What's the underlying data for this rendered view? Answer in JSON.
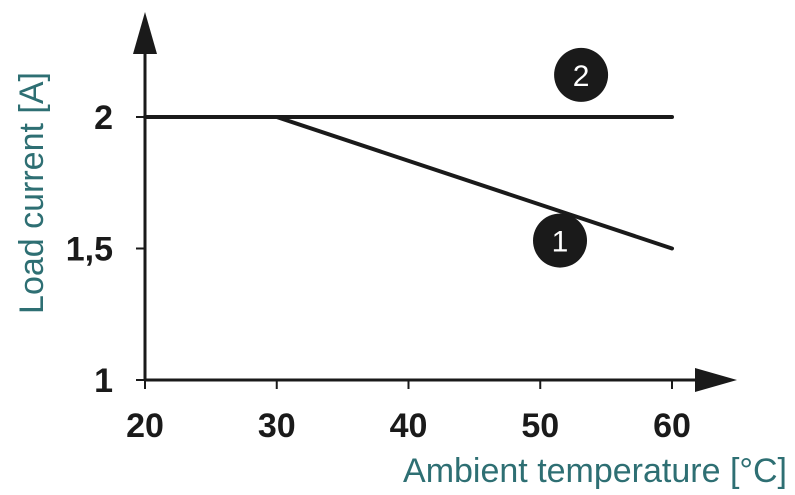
{
  "colors": {
    "axis": "#1a1a1a",
    "series": "#1a1a1a",
    "axis_title": "#2e6f73",
    "marker_fill": "#1a1a1a",
    "marker_text": "#ffffff"
  },
  "chart_data": {
    "type": "line",
    "title": "",
    "xlabel": "Ambient temperature [°C]",
    "ylabel": "Load current [A]",
    "xlim": [
      20,
      60
    ],
    "ylim": [
      1,
      2
    ],
    "x_ticks": [
      20,
      30,
      40,
      50,
      60
    ],
    "x_tick_labels": [
      "20",
      "30",
      "40",
      "50",
      "60"
    ],
    "y_ticks": [
      1,
      1.5,
      2
    ],
    "y_tick_labels": [
      "1",
      "1,5",
      "2"
    ],
    "grid": false,
    "series": [
      {
        "marker": "1",
        "x": [
          30,
          60
        ],
        "y": [
          2,
          1.5
        ]
      },
      {
        "marker": "2",
        "x": [
          20,
          60
        ],
        "y": [
          2,
          2
        ]
      }
    ],
    "annotations": [
      {
        "text": "1",
        "x": 51.5,
        "y": 1.53
      },
      {
        "text": "2",
        "x": 53.1,
        "y": 2.16
      }
    ]
  }
}
